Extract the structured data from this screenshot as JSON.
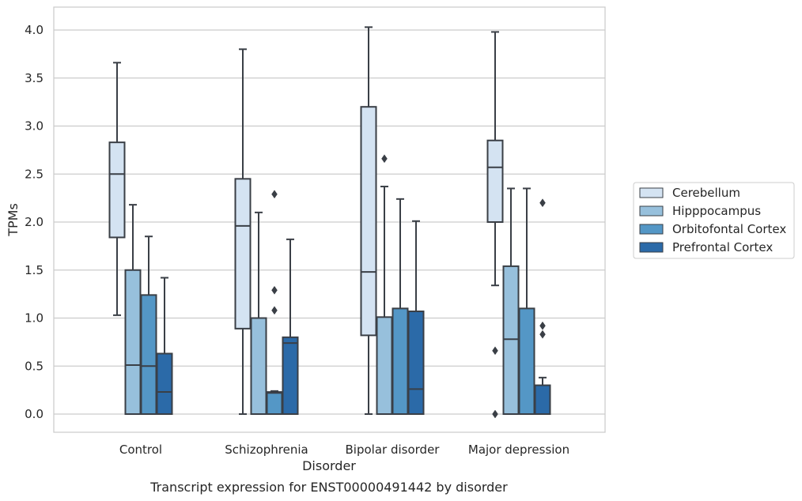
{
  "chart_data": {
    "type": "box",
    "xlabel": "Disorder",
    "ylabel": "TPMs",
    "caption": "Transcript expression for ENST00000491442 by disorder",
    "ylim": [
      -0.2,
      4.25
    ],
    "yticks": [
      "0.0",
      "0.5",
      "1.0",
      "1.5",
      "2.0",
      "2.5",
      "3.0",
      "3.5",
      "4.0"
    ],
    "grid": true,
    "legend_position": "right",
    "categories": [
      "Control",
      "Schizophrenia",
      "Bipolar disorder",
      "Major depression"
    ],
    "series": [
      {
        "name": "Cerebellum",
        "color": "#d4e3f2",
        "boxes": [
          {
            "whisker_low": 1.03,
            "q1": 1.84,
            "median": 2.5,
            "q3": 2.83,
            "whisker_high": 3.66,
            "outliers": []
          },
          {
            "whisker_low": 0.0,
            "q1": 0.89,
            "median": 1.96,
            "q3": 2.45,
            "whisker_high": 3.8,
            "outliers": []
          },
          {
            "whisker_low": 0.0,
            "q1": 0.82,
            "median": 1.48,
            "q3": 3.2,
            "whisker_high": 4.03,
            "outliers": []
          },
          {
            "whisker_low": 1.34,
            "q1": 2.0,
            "median": 2.57,
            "q3": 2.85,
            "whisker_high": 3.98,
            "outliers": [
              0.66,
              0.0
            ]
          }
        ]
      },
      {
        "name": "Hipppocampus",
        "color": "#97c0dc",
        "boxes": [
          {
            "whisker_low": 0.0,
            "q1": 0.0,
            "median": 0.51,
            "q3": 1.5,
            "whisker_high": 2.18,
            "outliers": []
          },
          {
            "whisker_low": 0.0,
            "q1": 0.0,
            "median": 0.0,
            "q3": 1.0,
            "whisker_high": 2.1,
            "outliers": []
          },
          {
            "whisker_low": 0.0,
            "q1": 0.0,
            "median": 0.0,
            "q3": 1.01,
            "whisker_high": 2.37,
            "outliers": [
              2.66
            ]
          },
          {
            "whisker_low": 0.0,
            "q1": 0.0,
            "median": 0.78,
            "q3": 1.54,
            "whisker_high": 2.35,
            "outliers": []
          }
        ]
      },
      {
        "name": "Orbitofontal Cortex",
        "color": "#5497c6",
        "boxes": [
          {
            "whisker_low": 0.0,
            "q1": 0.0,
            "median": 0.5,
            "q3": 1.24,
            "whisker_high": 1.85,
            "outliers": []
          },
          {
            "whisker_low": 0.0,
            "q1": 0.0,
            "median": 0.22,
            "q3": 0.23,
            "whisker_high": 0.24,
            "outliers": [
              2.29,
              1.29,
              1.08
            ]
          },
          {
            "whisker_low": 0.0,
            "q1": 0.0,
            "median": 0.0,
            "q3": 1.1,
            "whisker_high": 2.24,
            "outliers": []
          },
          {
            "whisker_low": 0.0,
            "q1": 0.0,
            "median": 0.0,
            "q3": 1.1,
            "whisker_high": 2.35,
            "outliers": []
          }
        ]
      },
      {
        "name": "Prefrontal Cortex",
        "color": "#2b6aa8",
        "boxes": [
          {
            "whisker_low": 0.0,
            "q1": 0.0,
            "median": 0.23,
            "q3": 0.63,
            "whisker_high": 1.42,
            "outliers": []
          },
          {
            "whisker_low": 0.0,
            "q1": 0.0,
            "median": 0.74,
            "q3": 0.8,
            "whisker_high": 1.82,
            "outliers": []
          },
          {
            "whisker_low": 0.0,
            "q1": 0.0,
            "median": 0.26,
            "q3": 1.07,
            "whisker_high": 2.01,
            "outliers": []
          },
          {
            "whisker_low": 0.0,
            "q1": 0.0,
            "median": 0.0,
            "q3": 0.3,
            "whisker_high": 0.38,
            "outliers": [
              2.2,
              0.92,
              0.83
            ]
          }
        ]
      }
    ]
  }
}
